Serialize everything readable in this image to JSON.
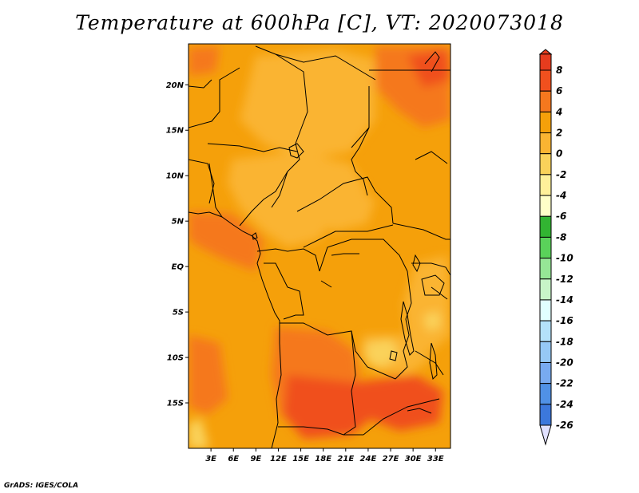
{
  "title": "Temperature at 600hPa [C], VT: 2020073018",
  "credit": "GrADS: IGES/COLA",
  "map": {
    "lon_range": [
      0,
      35
    ],
    "lat_range": [
      -20,
      24.5
    ],
    "x_ticks": [
      {
        "value": 3,
        "label": "3E"
      },
      {
        "value": 6,
        "label": "6E"
      },
      {
        "value": 9,
        "label": "9E"
      },
      {
        "value": 12,
        "label": "12E"
      },
      {
        "value": 15,
        "label": "15E"
      },
      {
        "value": 18,
        "label": "18E"
      },
      {
        "value": 21,
        "label": "21E"
      },
      {
        "value": 24,
        "label": "24E"
      },
      {
        "value": 27,
        "label": "27E"
      },
      {
        "value": 30,
        "label": "30E"
      },
      {
        "value": 33,
        "label": "33E"
      }
    ],
    "y_ticks": [
      {
        "value": 20,
        "label": "20N"
      },
      {
        "value": 15,
        "label": "15N"
      },
      {
        "value": 10,
        "label": "10N"
      },
      {
        "value": 5,
        "label": "5N"
      },
      {
        "value": 0,
        "label": "EQ"
      },
      {
        "value": -5,
        "label": "5S"
      },
      {
        "value": -10,
        "label": "10S"
      },
      {
        "value": -15,
        "label": "15S"
      }
    ]
  },
  "colorbar": {
    "levels": [
      {
        "label": "8",
        "color": "#e63c1e"
      },
      {
        "label": "6",
        "color": "#f0501e"
      },
      {
        "label": "4",
        "color": "#f5781e"
      },
      {
        "label": "2",
        "color": "#f5a00a"
      },
      {
        "label": "0",
        "color": "#fab432"
      },
      {
        "label": "-2",
        "color": "#fad25a"
      },
      {
        "label": "-4",
        "color": "#fff09a"
      },
      {
        "label": "-6",
        "color": "#ffffc8"
      },
      {
        "label": "-8",
        "color": "#32b432"
      },
      {
        "label": "-10",
        "color": "#5ad25a"
      },
      {
        "label": "-12",
        "color": "#96e696"
      },
      {
        "label": "-14",
        "color": "#c8f5c8"
      },
      {
        "label": "-16",
        "color": "#e1ffff"
      },
      {
        "label": "-18",
        "color": "#b4e1fa"
      },
      {
        "label": "-20",
        "color": "#96c8f5"
      },
      {
        "label": "-22",
        "color": "#78aaf0"
      },
      {
        "label": "-24",
        "color": "#5091e6"
      },
      {
        "label": "-26",
        "color": "#3c78dc"
      }
    ],
    "extra_colors": [
      "#2d5fc8",
      "#1e46b4",
      "#0a2896",
      "#0a0f64"
    ],
    "bottom_arrow_color": "#e1e1ff",
    "top_arrow_color": "#e63c1e"
  }
}
